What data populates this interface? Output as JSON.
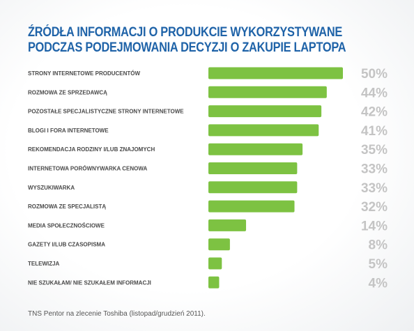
{
  "chart_data": {
    "type": "bar",
    "orientation": "horizontal",
    "title": "ŹRÓDŁA INFORMACJI O PRODUKCIE WYKORZYSTYWANE\nPODCZAS PODEJMOWANIA DECYZJI O ZAKUPIE LAPTOPA",
    "title_lines": [
      "ŹRÓDŁA INFORMACJI O PRODUKCIE WYKORZYSTYWANE",
      "PODCZAS PODEJMOWANIA DECYZJI O ZAKUPIE LAPTOPA"
    ],
    "categories": [
      "STRONY INTERNETOWE PRODUCENTÓW",
      "ROZMOWA ZE SPRZEDAWCĄ",
      "POZOSTAŁE SPECJALISTYCZNE STRONY INTERNETOWE",
      "BLOGI I FORA INTERNETOWE",
      "REKOMENDACJA RODZINY I/LUB ZNAJOMYCH",
      "INTERNETOWA PORÓWNYWARKA CENOWA",
      "WYSZUKIWARKA",
      "ROZMOWA ZE SPECJALISTĄ",
      "MEDIA SPOŁECZNOŚCIOWE",
      "GAZETY I/LUB CZASOPISMA",
      "TELEWIZJA",
      "NIE SZUKAŁAM/ NIE SZUKAŁEM INFORMACJI"
    ],
    "values": [
      50,
      44,
      42,
      41,
      35,
      33,
      33,
      32,
      14,
      8,
      5,
      4
    ],
    "value_labels": [
      "50%",
      "44%",
      "42%",
      "41%",
      "35%",
      "33%",
      "33%",
      "32%",
      "14%",
      "8%",
      "5%",
      "4%"
    ],
    "unit": "%",
    "xlim": [
      0,
      50
    ],
    "grid": false,
    "legend": "none",
    "bar_color": "#7dc242",
    "label_color": "#4a4a4a",
    "value_label_color": "#c4c4c4",
    "title_color": "#1f63a8"
  },
  "footer": {
    "source": "TNS Pentor na zlecenie Toshiba (listopad/grudzień 2011)."
  }
}
